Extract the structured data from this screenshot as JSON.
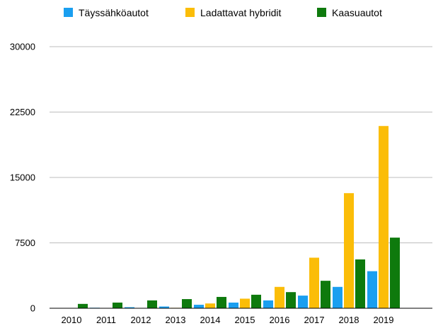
{
  "chart_data": {
    "type": "bar",
    "categories": [
      "2010",
      "2011",
      "2012",
      "2013",
      "2014",
      "2015",
      "2016",
      "2017",
      "2018",
      "2019"
    ],
    "series": [
      {
        "name": "Täyssähköautot",
        "color": "#1a9ff0",
        "values": [
          30,
          60,
          120,
          200,
          400,
          650,
          900,
          1450,
          2450,
          4250
        ]
      },
      {
        "name": "Ladattavat hybridit",
        "color": "#fbbd08",
        "values": [
          0,
          0,
          0,
          50,
          550,
          1100,
          2450,
          5800,
          13200,
          20900
        ]
      },
      {
        "name": "Kaasuautot",
        "color": "#0e7a0d",
        "values": [
          500,
          650,
          900,
          1050,
          1300,
          1550,
          1850,
          3150,
          5600,
          8100
        ]
      }
    ],
    "yticks": [
      "0",
      "7500",
      "15000",
      "22500",
      "30000"
    ],
    "ylim": [
      0,
      30000
    ],
    "grid": true,
    "legend_position": "top"
  }
}
